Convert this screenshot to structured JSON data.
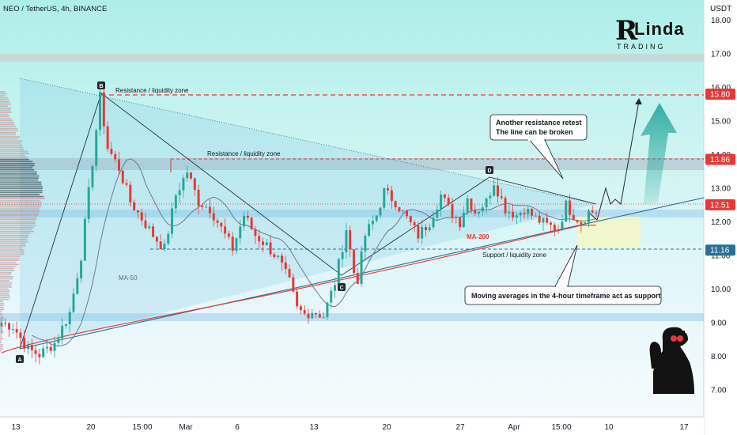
{
  "chart_data": {
    "type": "candlestick",
    "title": "NEO / TetherUS, 4h, BINANCE",
    "currency_label": "USDT",
    "y_axis": {
      "range": [
        6.2,
        18.6
      ],
      "ticks": [
        "7.00",
        "8.00",
        "9.00",
        "10.00",
        "11.00",
        "12.00",
        "13.00",
        "14.00",
        "15.00",
        "16.00",
        "17.00",
        "18.00"
      ]
    },
    "x_axis": {
      "ticks": [
        "13",
        "20",
        "15:00",
        "Mar",
        "6",
        "13",
        "20",
        "27",
        "Apr",
        "15:00",
        "10",
        "17"
      ]
    },
    "price_tags": [
      {
        "value": "15.80",
        "color": "#e53935"
      },
      {
        "value": "13.86",
        "color": "#e53935"
      },
      {
        "value": "12.51",
        "color": "#e53935"
      },
      {
        "value": "11.16",
        "color": "#2a6f97"
      }
    ],
    "points": {
      "A": "A",
      "B": "B",
      "C": "C",
      "D": "D"
    },
    "annotations": {
      "resistance_top": "Resistance / liquidity zone",
      "resistance_mid": "Resistance / liquidity zone",
      "support": "Support / liquidity zone",
      "ma50": "MA-50",
      "ma200": "MA-200",
      "callout_top_line1": "Another resistance retest",
      "callout_top_line2": "The line can be broken",
      "callout_bottom": "Moving averages in the 4-hour timeframe act as support"
    },
    "logo": {
      "top": "Linda",
      "bottom": "TRADING"
    },
    "colors": {
      "up": "#26a69a",
      "down": "#e53935",
      "ma200": "#e53935",
      "ma50": "#6b7b8c",
      "resistance": "#e53935",
      "support": "#2a6f97"
    },
    "price_path": [
      [
        0,
        9.0
      ],
      [
        3,
        8.9
      ],
      [
        7,
        8.2
      ],
      [
        10,
        8.05
      ],
      [
        14,
        8.4
      ],
      [
        18,
        9.3
      ],
      [
        21,
        11.0
      ],
      [
        24,
        13.8
      ],
      [
        26,
        15.7
      ],
      [
        28,
        14.2
      ],
      [
        31,
        13.6
      ],
      [
        34,
        12.6
      ],
      [
        37,
        12.1
      ],
      [
        40,
        11.6
      ],
      [
        43,
        11.2
      ],
      [
        46,
        12.8
      ],
      [
        49,
        13.5
      ],
      [
        52,
        12.6
      ],
      [
        55,
        12.4
      ],
      [
        58,
        11.8
      ],
      [
        61,
        11.2
      ],
      [
        64,
        12.2
      ],
      [
        67,
        11.6
      ],
      [
        70,
        11.3
      ],
      [
        73,
        10.9
      ],
      [
        76,
        10.2
      ],
      [
        78,
        9.4
      ],
      [
        80,
        9.25
      ],
      [
        82,
        9.35
      ],
      [
        85,
        9.2
      ],
      [
        88,
        10.2
      ],
      [
        91,
        11.8
      ],
      [
        93,
        10.5
      ],
      [
        94,
        10.3
      ],
      [
        96,
        11.6
      ],
      [
        99,
        12.2
      ],
      [
        101,
        12.9
      ],
      [
        104,
        12.6
      ],
      [
        107,
        12.1
      ],
      [
        110,
        11.6
      ],
      [
        113,
        12.0
      ],
      [
        116,
        12.8
      ],
      [
        118,
        12.4
      ],
      [
        121,
        12.0
      ],
      [
        123,
        12.7
      ],
      [
        125,
        12.3
      ],
      [
        128,
        12.6
      ],
      [
        130,
        13.2
      ],
      [
        133,
        12.4
      ],
      [
        136,
        12.2
      ],
      [
        138,
        12.4
      ],
      [
        141,
        12.1
      ],
      [
        144,
        11.9
      ],
      [
        147,
        11.8
      ],
      [
        149,
        12.5
      ],
      [
        151,
        12.2
      ],
      [
        153,
        12.0
      ],
      [
        155,
        12.3
      ]
    ]
  }
}
